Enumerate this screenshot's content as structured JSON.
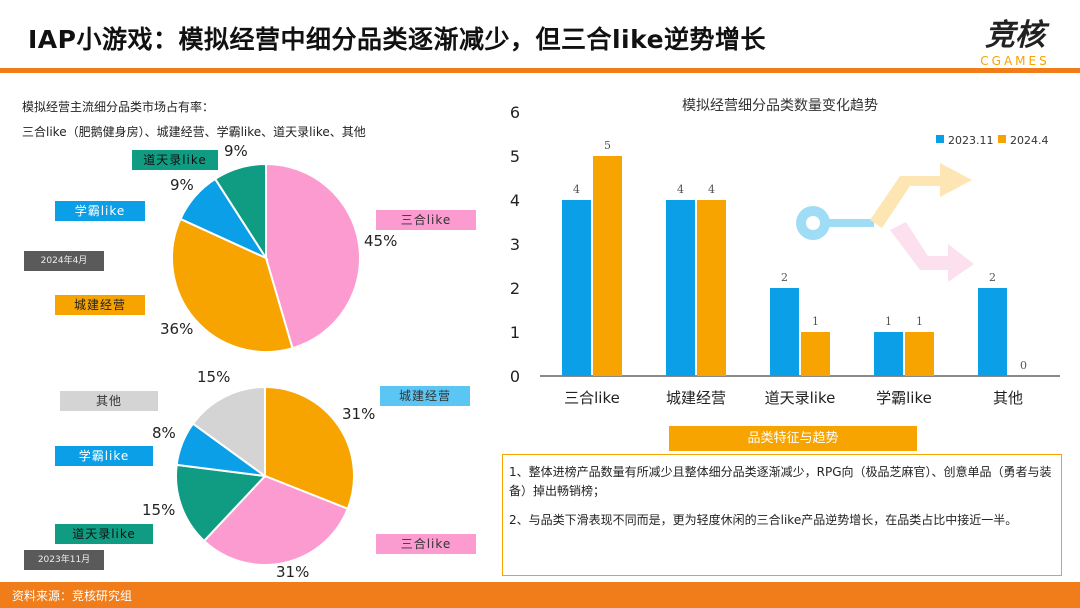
{
  "header": {
    "title": "IAP小游戏：模拟经营中细分品类逐渐减少，但三合like逆势增长",
    "logo_cn": "竞核",
    "logo_en": "CGAMES"
  },
  "left": {
    "caption_line1": "模拟经营主流细分品类市场占有率：",
    "caption_line2": "三合like（肥鹅健身房）、城建经营、学霸like、道天录like、其他"
  },
  "colors": {
    "accent": "#f07d1a",
    "sanhe": "#fb9bd0",
    "chengjian": "#f7a300",
    "xueba": "#0b9fe8",
    "daotian": "#109c83",
    "other": "#d4d4d4",
    "bar_2023": "#0b9fe8",
    "bar_2024": "#f7a300"
  },
  "chart_data": [
    {
      "type": "pie",
      "title": "2024年4月",
      "slices": [
        {
          "label": "三合like",
          "value": 45,
          "pct_label": "45%",
          "color": "#fb9bd0"
        },
        {
          "label": "城建经营",
          "value": 36,
          "pct_label": "36%",
          "color": "#f7a300"
        },
        {
          "label": "学霸like",
          "value": 9,
          "pct_label": "9%",
          "color": "#0b9fe8"
        },
        {
          "label": "道天录like",
          "value": 9,
          "pct_label": "9%",
          "color": "#109c83"
        }
      ]
    },
    {
      "type": "pie",
      "title": "2023年11月",
      "slices": [
        {
          "label": "城建经营",
          "value": 31,
          "pct_label": "31%",
          "color": "#f7a300"
        },
        {
          "label": "三合like",
          "value": 31,
          "pct_label": "31%",
          "color": "#fb9bd0"
        },
        {
          "label": "道天录like",
          "value": 15,
          "pct_label": "15%",
          "color": "#109c83"
        },
        {
          "label": "学霸like",
          "value": 8,
          "pct_label": "8%",
          "color": "#0b9fe8"
        },
        {
          "label": "其他",
          "value": 15,
          "pct_label": "15%",
          "color": "#d4d4d4"
        }
      ]
    },
    {
      "type": "bar",
      "title": "模拟经营细分品类数量变化趋势",
      "categories": [
        "三合like",
        "城建经营",
        "道天录like",
        "学霸like",
        "其他"
      ],
      "series": [
        {
          "name": "2023.11",
          "values": [
            4,
            4,
            2,
            1,
            2
          ],
          "color": "#0b9fe8"
        },
        {
          "name": "2024.4",
          "values": [
            5,
            4,
            1,
            1,
            0
          ],
          "color": "#f7a300"
        }
      ],
      "ylim": [
        0,
        6
      ],
      "yticks": [
        0,
        1,
        2,
        3,
        4,
        5,
        6
      ],
      "legend": "top-right"
    }
  ],
  "notes": {
    "header": "品类特征与趋势",
    "items": [
      "1、整体进榜产品数量有所减少且整体细分品类逐渐减少，RPG向（极品芝麻官）、创意单品（勇者与装备）掉出畅销榜；",
      "2、与品类下滑表现不同而是，更为轻度休闲的三合like产品逆势增长，在品类占比中接近一半。"
    ]
  },
  "footer": {
    "source": "资料来源：竞核研究组"
  }
}
